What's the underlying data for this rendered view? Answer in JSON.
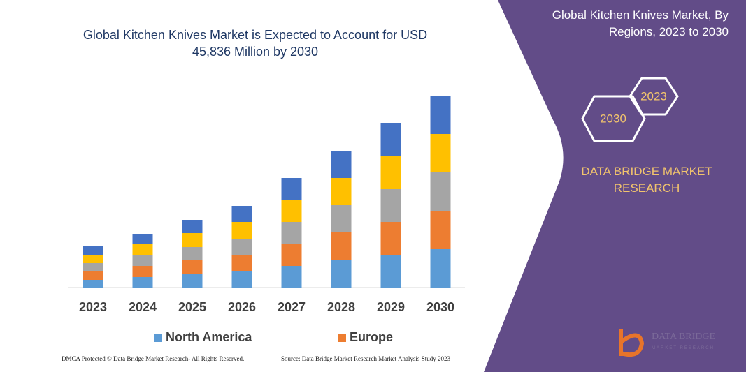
{
  "chart_data": {
    "type": "stacked-bar",
    "title": "Global Kitchen Knives Market is Expected to Account for USD 45,836 Million by 2030",
    "categories": [
      "2023",
      "2024",
      "2025",
      "2026",
      "2027",
      "2028",
      "2029",
      "2030"
    ],
    "series": [
      {
        "name": "North America",
        "color": "#5b9bd5",
        "values": [
          11,
          15,
          19,
          23,
          31,
          39,
          47,
          55
        ]
      },
      {
        "name": "Europe",
        "color": "#ed7d31",
        "values": [
          12,
          16,
          20,
          24,
          32,
          40,
          47,
          55
        ]
      },
      {
        "color": "#a5a5a5",
        "values": [
          12,
          15,
          19,
          23,
          31,
          39,
          47,
          55
        ]
      },
      {
        "color": "#ffc000",
        "values": [
          12,
          16,
          20,
          24,
          32,
          39,
          48,
          55
        ]
      },
      {
        "color": "#4472c4",
        "values": [
          12,
          15,
          19,
          23,
          31,
          39,
          47,
          55
        ]
      }
    ],
    "ylim": [
      0,
      275
    ]
  },
  "panel": {
    "title": "Global Kitchen Knives Market, By Regions, 2023 to 2030",
    "hexagons": [
      "2030",
      "2023"
    ],
    "brand": "DATA BRIDGE MARKET RESEARCH",
    "logo": [
      "DATA BRIDGE",
      "MARKET RESEARCH"
    ]
  },
  "footer": {
    "left": "DMCA Protected © Data Bridge Market Research- All Rights Reserved.",
    "right": "Source: Data Bridge Market Research Market Analysis Study 2023"
  }
}
